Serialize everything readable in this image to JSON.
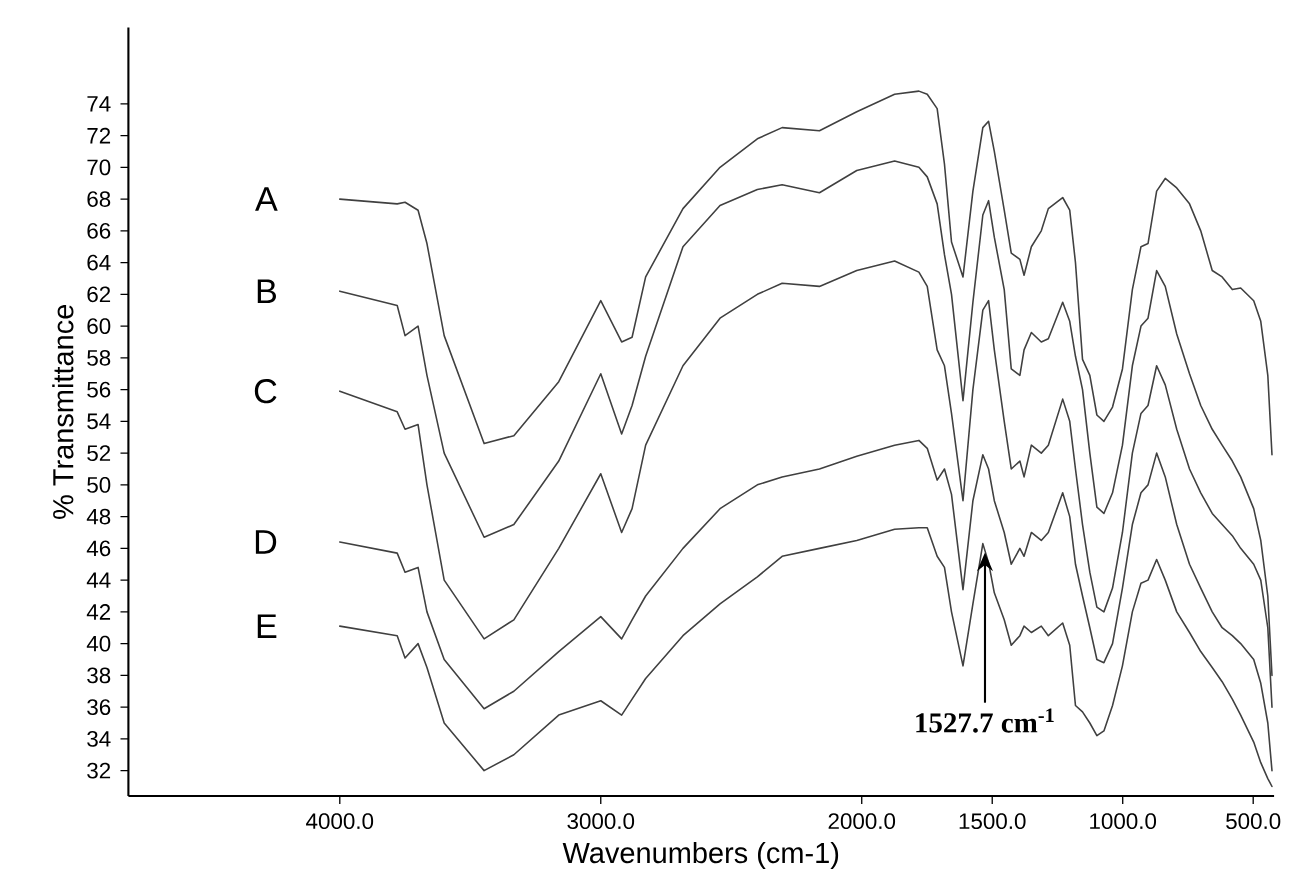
{
  "chart_data": {
    "type": "line",
    "xlabel": "Wavenumbers (cm-1)",
    "ylabel": "% Transmittance",
    "x": [
      4000,
      3780,
      3750,
      3700,
      3666,
      3600,
      3447,
      3333,
      3161,
      3000,
      2920,
      2880,
      2828,
      2685,
      2543,
      2400,
      2305,
      2162,
      2019,
      1874,
      1781,
      1749,
      1711,
      1683,
      1656,
      1612,
      1574,
      1536,
      1514,
      1492,
      1454,
      1427,
      1394,
      1378,
      1350,
      1312,
      1285,
      1230,
      1203,
      1181,
      1154,
      1126,
      1099,
      1072,
      1039,
      1001,
      963,
      930,
      903,
      870,
      837,
      793,
      744,
      701,
      657,
      619,
      580,
      548,
      498,
      471,
      444,
      428
    ],
    "xlim": [
      4810,
      420
    ],
    "xticks": [
      {
        "value": 4000,
        "label": "4000.0"
      },
      {
        "value": 3000,
        "label": "3000.0"
      },
      {
        "value": 2000,
        "label": "2000.0"
      },
      {
        "value": 1500,
        "label": "1500.0"
      },
      {
        "value": 1000,
        "label": "1000.0"
      },
      {
        "value": 500,
        "label": "500.0"
      }
    ],
    "ylim": [
      30.4,
      78.8
    ],
    "yticks": [
      32,
      34,
      36,
      38,
      40,
      42,
      44,
      46,
      48,
      50,
      52,
      54,
      56,
      58,
      60,
      62,
      64,
      66,
      68,
      70,
      72,
      74
    ],
    "series": [
      {
        "name": "A",
        "color": "#404040",
        "values": [
          68.0,
          67.7,
          67.8,
          67.3,
          65.2,
          59.4,
          52.6,
          53.1,
          56.5,
          61.6,
          59.0,
          59.3,
          63.1,
          67.4,
          70.0,
          71.8,
          72.5,
          72.3,
          73.5,
          74.6,
          74.8,
          74.6,
          73.7,
          70.2,
          65.3,
          63.1,
          68.5,
          72.5,
          72.9,
          71.0,
          67.3,
          64.6,
          64.2,
          63.2,
          65.0,
          66.0,
          67.4,
          68.1,
          67.3,
          64.0,
          57.9,
          56.9,
          54.4,
          54.0,
          54.9,
          57.3,
          62.3,
          65.0,
          65.2,
          68.5,
          69.3,
          68.7,
          67.7,
          66.0,
          63.5,
          63.1,
          62.3,
          62.4,
          61.6,
          60.3,
          56.9,
          51.9
        ]
      },
      {
        "name": "B",
        "color": "#404040",
        "values": [
          62.2,
          61.3,
          59.4,
          60.0,
          56.9,
          52.0,
          46.7,
          47.5,
          51.5,
          57.0,
          53.2,
          55.0,
          58.1,
          65.0,
          67.6,
          68.6,
          68.9,
          68.4,
          69.8,
          70.4,
          70.0,
          69.4,
          67.7,
          64.5,
          62.0,
          55.3,
          61.5,
          67.0,
          67.9,
          65.6,
          62.3,
          57.3,
          56.9,
          58.5,
          59.6,
          59.0,
          59.2,
          61.5,
          60.3,
          58.1,
          56.0,
          52.0,
          48.6,
          48.2,
          49.5,
          52.5,
          57.5,
          60.0,
          60.5,
          63.5,
          62.5,
          59.5,
          57.0,
          55.0,
          53.5,
          52.5,
          51.5,
          50.5,
          48.5,
          46.5,
          43.0,
          38.0
        ]
      },
      {
        "name": "C",
        "color": "#404040",
        "values": [
          55.9,
          54.6,
          53.5,
          53.8,
          50.0,
          44.0,
          40.3,
          41.5,
          46.0,
          50.7,
          47.0,
          48.5,
          52.5,
          57.5,
          60.5,
          62.0,
          62.7,
          62.5,
          63.5,
          64.1,
          63.4,
          62.5,
          58.5,
          57.5,
          54.5,
          49.0,
          56.0,
          61.0,
          61.6,
          58.5,
          54.0,
          51.0,
          51.5,
          50.5,
          52.5,
          52.0,
          52.5,
          55.4,
          54.0,
          51.0,
          47.5,
          44.5,
          42.3,
          42.0,
          43.5,
          47.0,
          52.0,
          54.5,
          55.0,
          57.5,
          56.3,
          53.5,
          51.0,
          49.5,
          48.2,
          47.5,
          46.8,
          46.0,
          45.0,
          44.0,
          41.0,
          36.0
        ]
      },
      {
        "name": "D",
        "color": "#404040",
        "values": [
          46.4,
          45.7,
          44.5,
          44.8,
          42.0,
          39.0,
          35.9,
          37.0,
          39.5,
          41.7,
          40.3,
          41.5,
          43.0,
          46.0,
          48.5,
          50.0,
          50.5,
          51.0,
          51.8,
          52.5,
          52.8,
          52.3,
          50.3,
          51.0,
          49.4,
          43.4,
          49.0,
          51.9,
          51.0,
          49.0,
          47.0,
          45.0,
          46.0,
          45.5,
          47.0,
          46.5,
          47.0,
          49.5,
          48.0,
          45.0,
          43.0,
          41.0,
          39.0,
          38.8,
          40.0,
          43.5,
          47.5,
          49.5,
          50.0,
          52.0,
          50.5,
          47.5,
          45.0,
          43.5,
          42.0,
          41.0,
          40.5,
          40.0,
          39.0,
          37.5,
          35.0,
          32.0
        ]
      },
      {
        "name": "E",
        "color": "#404040",
        "values": [
          41.1,
          40.5,
          39.1,
          40.0,
          38.5,
          35.0,
          32.0,
          33.0,
          35.5,
          36.4,
          35.5,
          36.5,
          37.8,
          40.5,
          42.5,
          44.2,
          45.5,
          46.0,
          46.5,
          47.2,
          47.3,
          47.3,
          45.5,
          44.8,
          42.0,
          38.6,
          42.5,
          46.3,
          45.1,
          43.2,
          41.5,
          39.9,
          40.5,
          41.1,
          40.7,
          41.1,
          40.5,
          41.3,
          39.9,
          36.1,
          35.7,
          35.0,
          34.2,
          34.5,
          36.1,
          38.6,
          42.0,
          43.8,
          44.0,
          45.3,
          44.0,
          42.0,
          40.7,
          39.5,
          38.5,
          37.6,
          36.5,
          35.5,
          33.8,
          32.5,
          31.5,
          31.0
        ]
      }
    ],
    "annotations": [
      {
        "text": "1527.7 cm$^{-1}$",
        "x": 1527.7,
        "y": 45.9
      }
    ]
  }
}
